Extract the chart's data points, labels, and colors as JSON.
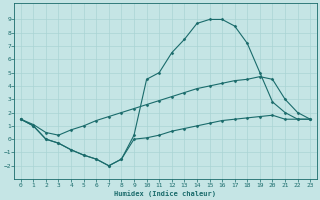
{
  "xlabel": "Humidex (Indice chaleur)",
  "bg_color": "#c5e5e5",
  "line_color": "#1a6b6b",
  "grid_color": "#aad4d4",
  "xlim": [
    -0.5,
    23.5
  ],
  "ylim": [
    -3.0,
    10.2
  ],
  "xticks": [
    0,
    1,
    2,
    3,
    4,
    5,
    6,
    7,
    8,
    9,
    10,
    11,
    12,
    13,
    14,
    15,
    16,
    17,
    18,
    19,
    20,
    21,
    22,
    23
  ],
  "yticks": [
    -2,
    -1,
    0,
    1,
    2,
    3,
    4,
    5,
    6,
    7,
    8,
    9
  ],
  "line_top": {
    "x": [
      0,
      1,
      2,
      3,
      4,
      5,
      6,
      7,
      8,
      9,
      10,
      11,
      12,
      13,
      14,
      15,
      16,
      17,
      18,
      19,
      20,
      21,
      22,
      23
    ],
    "y": [
      1.5,
      1.0,
      0.0,
      -0.3,
      -0.8,
      -1.2,
      -1.5,
      -2.0,
      -1.5,
      0.3,
      4.5,
      5.0,
      6.5,
      7.5,
      8.7,
      9.0,
      9.0,
      8.5,
      7.2,
      5.0,
      2.8,
      2.0,
      1.5,
      1.5
    ]
  },
  "line_mean": {
    "x": [
      0,
      1,
      2,
      3,
      4,
      5,
      6,
      7,
      8,
      9,
      10,
      11,
      12,
      13,
      14,
      15,
      16,
      17,
      18,
      19,
      20,
      21,
      22,
      23
    ],
    "y": [
      1.5,
      1.1,
      0.5,
      0.3,
      0.7,
      1.0,
      1.4,
      1.7,
      2.0,
      2.3,
      2.6,
      2.9,
      3.2,
      3.5,
      3.8,
      4.0,
      4.2,
      4.4,
      4.5,
      4.7,
      4.5,
      3.0,
      2.0,
      1.5
    ]
  },
  "line_bot": {
    "x": [
      0,
      1,
      2,
      3,
      4,
      5,
      6,
      7,
      8,
      9,
      10,
      11,
      12,
      13,
      14,
      15,
      16,
      17,
      18,
      19,
      20,
      21,
      22,
      23
    ],
    "y": [
      1.5,
      1.0,
      0.0,
      -0.3,
      -0.8,
      -1.2,
      -1.5,
      -2.0,
      -1.5,
      0.0,
      0.1,
      0.3,
      0.6,
      0.8,
      1.0,
      1.2,
      1.4,
      1.5,
      1.6,
      1.7,
      1.8,
      1.5,
      1.5,
      1.5
    ]
  }
}
